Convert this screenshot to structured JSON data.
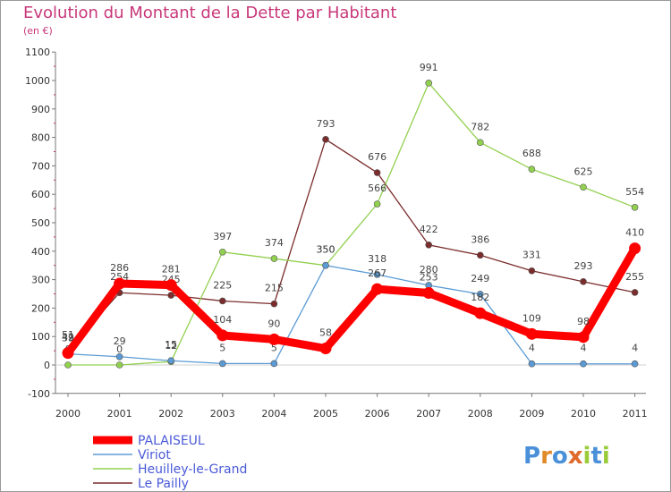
{
  "title": "Evolution du Montant de la Dette par Habitant",
  "subtitle": "(en €)",
  "brand": "Proxiti",
  "chart_data": {
    "type": "line",
    "title": "Evolution du Montant de la Dette par Habitant",
    "ylabel": "(en €)",
    "xlabel": "",
    "x": [
      "2000",
      "2001",
      "2002",
      "2003",
      "2004",
      "2005",
      "2006",
      "2007",
      "2008",
      "2009",
      "2010",
      "2011"
    ],
    "ylim": [
      -100,
      1100
    ],
    "yticks": [
      -100,
      0,
      100,
      200,
      300,
      400,
      500,
      600,
      700,
      800,
      900,
      1000,
      1100
    ],
    "grid": false,
    "legend": "bottom-left",
    "series": [
      {
        "name": "PALAISEUL",
        "color": "#ff0000",
        "values": [
          42,
          286,
          281,
          104,
          90,
          58,
          267,
          253,
          182,
          109,
          98,
          410
        ]
      },
      {
        "name": "Viriot",
        "color": "#5b9bd5",
        "values": [
          39,
          29,
          15,
          5,
          5,
          350,
          318,
          280,
          249,
          4,
          4,
          4
        ]
      },
      {
        "name": "Heuilley-le-Grand",
        "color": "#92d050",
        "values": [
          0,
          0,
          12,
          397,
          374,
          350,
          566,
          991,
          782,
          688,
          625,
          554
        ]
      },
      {
        "name": "Le Pailly",
        "color": "#7b2c2c",
        "values": [
          51,
          254,
          245,
          225,
          215,
          793,
          676,
          422,
          386,
          331,
          293,
          255
        ]
      }
    ]
  }
}
